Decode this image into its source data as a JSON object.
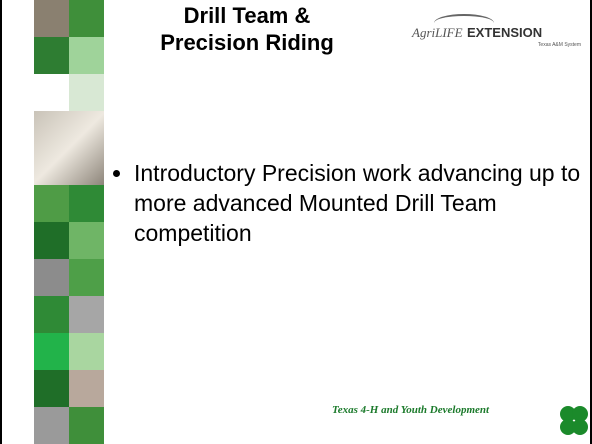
{
  "header": {
    "title": [
      "Drill Team &",
      "Precision Riding"
    ]
  },
  "logo": {
    "brand": "AgriLIFE",
    "unit": "EXTENSION",
    "sub": "Texas A&M System"
  },
  "body": {
    "bullets": [
      "Introductory Precision work advancing up to more advanced Mounted Drill Team competition"
    ]
  },
  "footer": {
    "text": "Texas 4-H and Youth Development"
  }
}
